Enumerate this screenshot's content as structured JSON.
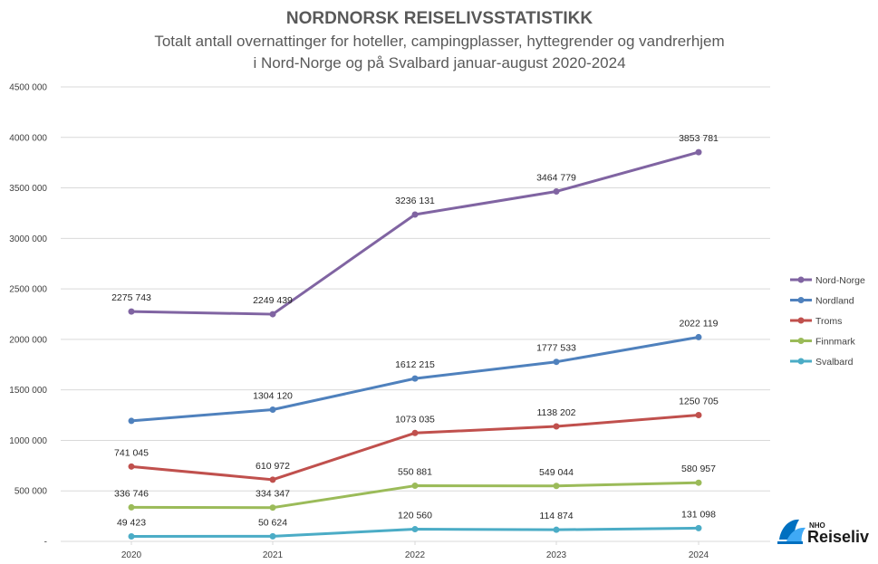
{
  "chart_data": {
    "type": "line",
    "title": "NORDNORSK REISELIVSSTATISTIKK",
    "subtitle_lines": [
      "Totalt antall overnattinger for hoteller, campingplasser, hyttegrender og vandrerhjem",
      "i Nord-Norge og på Svalbard januar-august 2020-2024"
    ],
    "categories": [
      "2020",
      "2021",
      "2022",
      "2023",
      "2024"
    ],
    "y_ticks": [
      "-",
      "500 000",
      "1000 000",
      "1500 000",
      "2000 000",
      "2500 000",
      "3000 000",
      "3500 000",
      "4000 000",
      "4500 000"
    ],
    "ylim": [
      0,
      4500000
    ],
    "grid": true,
    "legend_position": "right",
    "series": [
      {
        "name": "Nord-Norge",
        "color": "#8064a2",
        "values": [
          2275743,
          2249439,
          3236131,
          3464779,
          3853781
        ],
        "labels": [
          "2275 743",
          "2249 439",
          "3236 131",
          "3464 779",
          "3853 781"
        ]
      },
      {
        "name": "Nordland",
        "color": "#4f81bd",
        "values": [
          1193000,
          1304120,
          1612215,
          1777533,
          2022119
        ],
        "labels": [
          "",
          "1304 120",
          "1612 215",
          "1777 533",
          "2022 119"
        ]
      },
      {
        "name": "Troms",
        "color": "#c0504d",
        "values": [
          741045,
          610972,
          1073035,
          1138202,
          1250705
        ],
        "labels": [
          "741 045",
          "610 972",
          "1073 035",
          "1138 202",
          "1250 705"
        ]
      },
      {
        "name": "Finnmark",
        "color": "#9bbb59",
        "values": [
          336746,
          334347,
          550881,
          549044,
          580957
        ],
        "labels": [
          "336 746",
          "334 347",
          "550 881",
          "549 044",
          "580 957"
        ]
      },
      {
        "name": "Svalbard",
        "color": "#4bacc6",
        "values": [
          49423,
          50624,
          120560,
          114874,
          131098
        ],
        "labels": [
          "49 423",
          "50 624",
          "120 560",
          "114 874",
          "131 098"
        ]
      }
    ]
  },
  "logo": {
    "small_text": "NHO",
    "big_text": "Reiseliv",
    "icon": "nho-wave-icon",
    "color": "#0070c0"
  }
}
